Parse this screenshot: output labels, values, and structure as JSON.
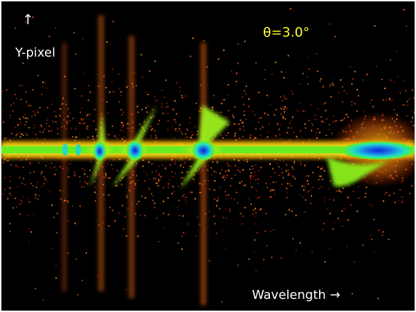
{
  "labels": {
    "y_arrow": "↑",
    "y_axis": "Y-pixel",
    "angle": "θ=3.0°",
    "x_axis": "Wavelength →"
  },
  "colors": {
    "background": "#000000",
    "speckle_low": "#8a1a08",
    "speckle_high": "#ff6a1a",
    "glow": "#ffb400",
    "mid": "#7cf21a",
    "cyan": "#1ee6c8",
    "core": "#1040e0",
    "angle_text": "#ffff33",
    "axis_text": "#ffffff"
  }
}
